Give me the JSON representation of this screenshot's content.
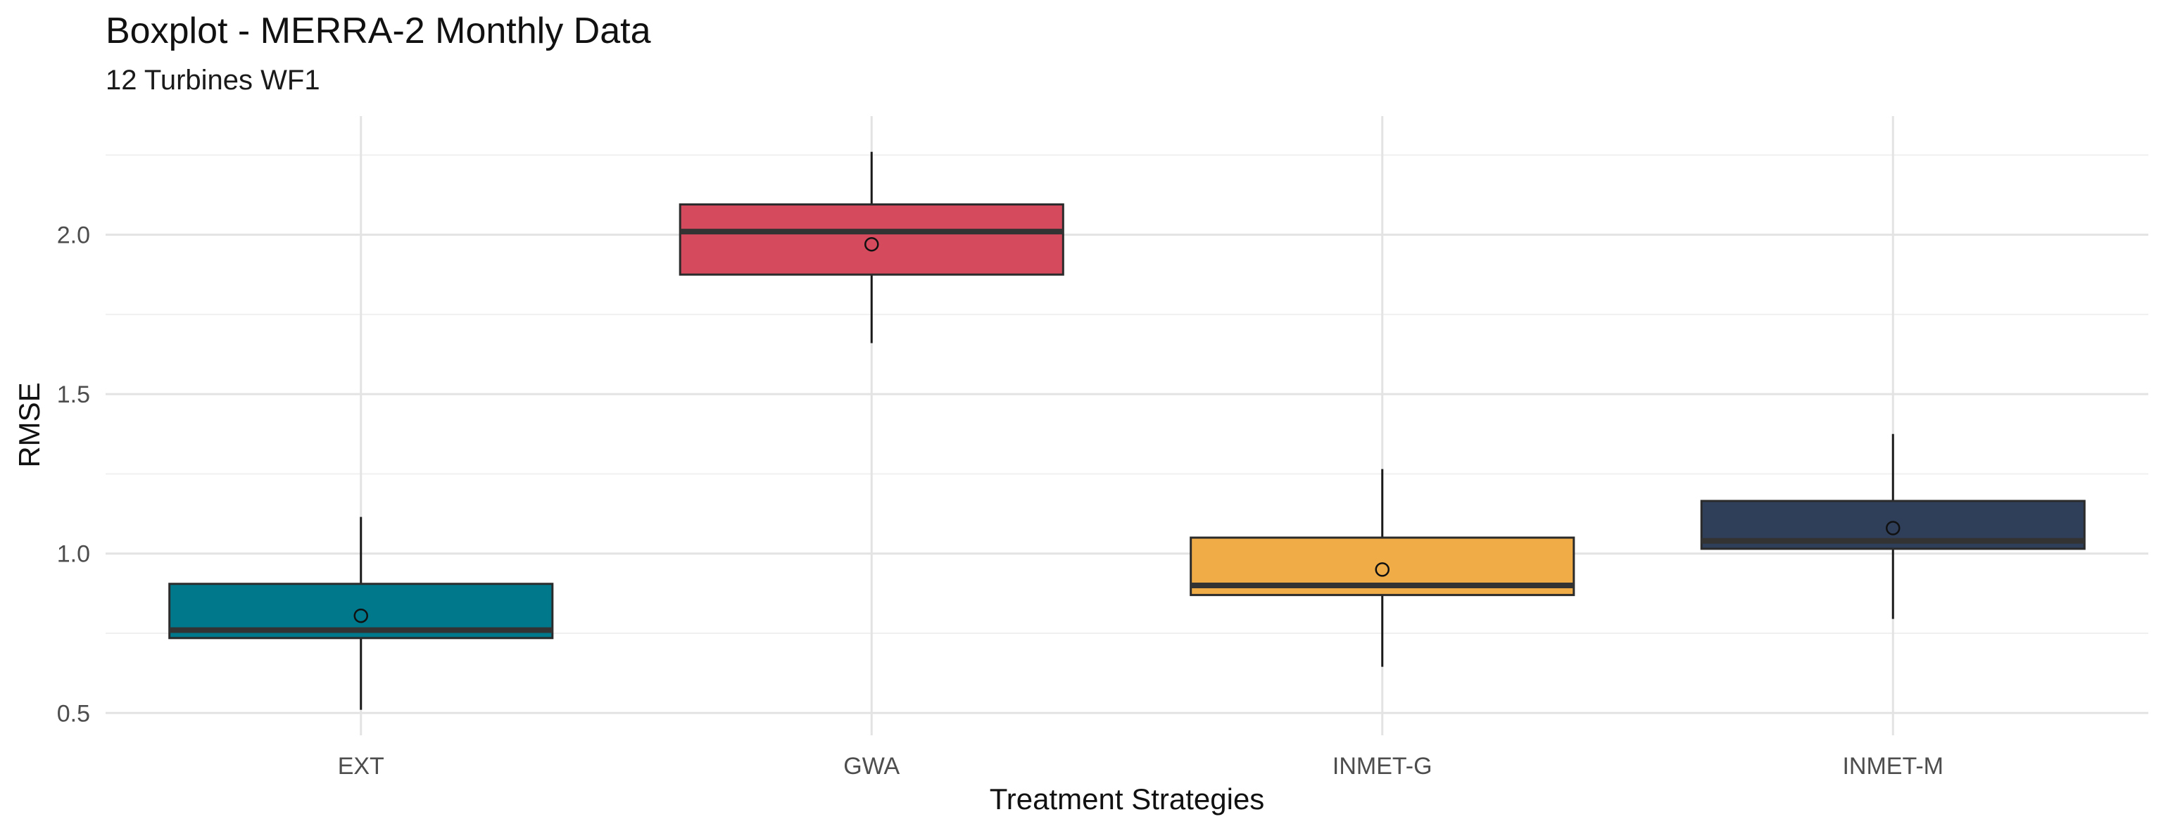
{
  "chart_data": {
    "type": "boxplot",
    "title": "Boxplot - MERRA-2 Monthly Data",
    "subtitle": "12 Turbines WF1",
    "xlabel": "Treatment Strategies",
    "ylabel": "RMSE",
    "ylim": [
      0.43,
      2.35
    ],
    "yticks": [
      0.5,
      1.0,
      1.5,
      2.0
    ],
    "ytick_labels": [
      "0.5",
      "1.0",
      "1.5",
      "2.0"
    ],
    "grid": true,
    "legend": "none",
    "categories": [
      "EXT",
      "GWA",
      "INMET-G",
      "INMET-M"
    ],
    "boxes": [
      {
        "category": "EXT",
        "whisker_low": 0.51,
        "q1": 0.735,
        "median": 0.76,
        "q3": 0.905,
        "whisker_high": 1.115,
        "mean": 0.805,
        "color": "#00788C"
      },
      {
        "category": "GWA",
        "whisker_low": 1.66,
        "q1": 1.875,
        "median": 2.01,
        "q3": 2.095,
        "whisker_high": 2.26,
        "mean": 1.97,
        "color": "#D64A5E"
      },
      {
        "category": "INMET-G",
        "whisker_low": 0.645,
        "q1": 0.87,
        "median": 0.9,
        "q3": 1.05,
        "whisker_high": 1.265,
        "mean": 0.95,
        "color": "#EFAC47"
      },
      {
        "category": "INMET-M",
        "whisker_low": 0.795,
        "q1": 1.015,
        "median": 1.04,
        "q3": 1.165,
        "whisker_high": 1.375,
        "mean": 1.08,
        "color": "#2F3F5A"
      }
    ]
  }
}
